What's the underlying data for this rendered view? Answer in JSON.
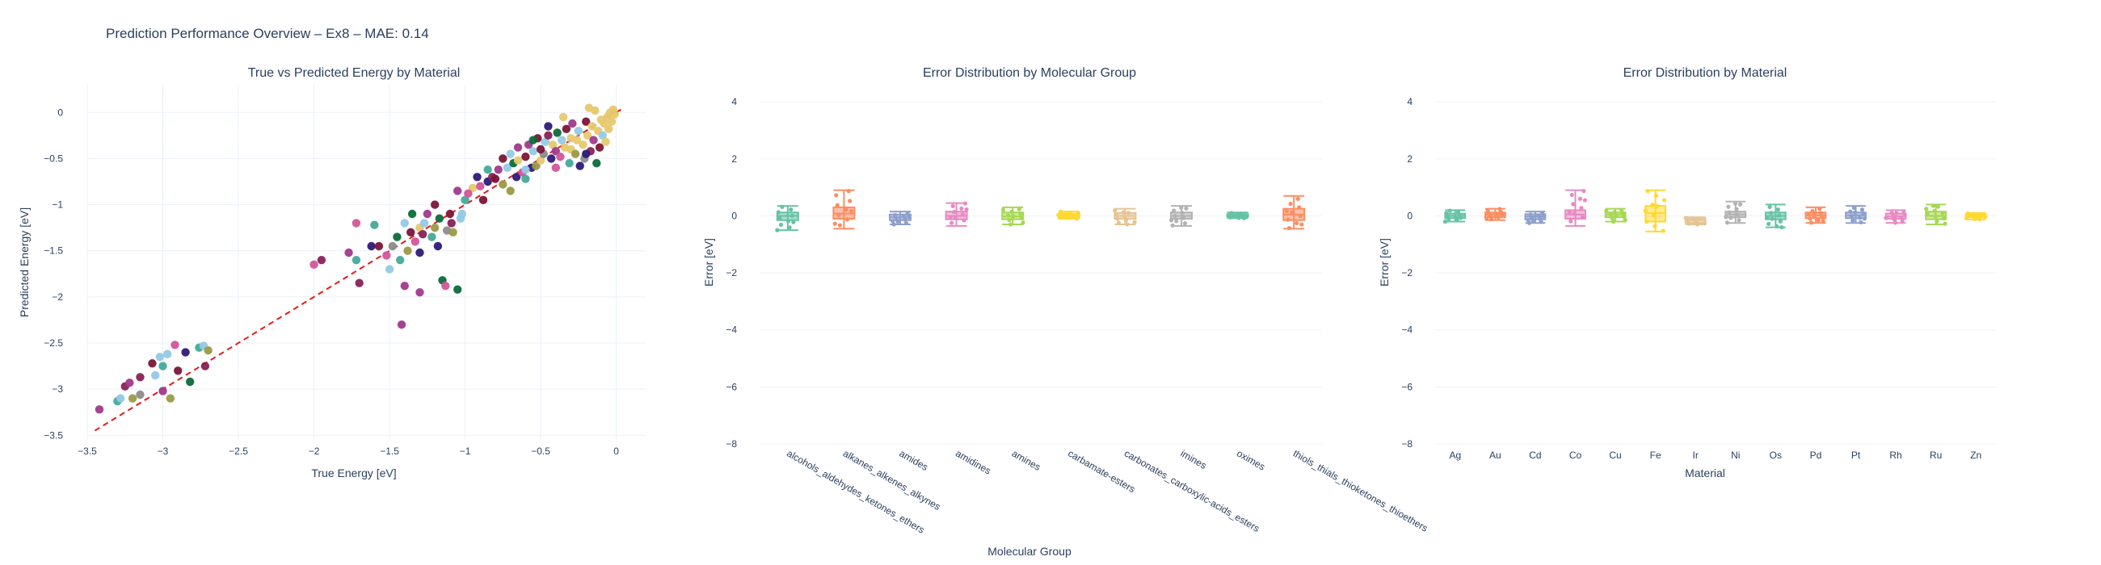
{
  "title": "Prediction Performance Overview – Ex8 – MAE: 0.14",
  "chart_data": [
    {
      "type": "scatter",
      "title": "True vs Predicted Energy by Material",
      "xlabel": "True Energy [eV]",
      "ylabel": "Predicted Energy [eV]",
      "xlim": [
        -3.5,
        0.2
      ],
      "ylim": [
        -3.55,
        0.3
      ],
      "xticks": [
        -3.5,
        -3,
        -2.5,
        -2,
        -1.5,
        -1,
        -0.5,
        0
      ],
      "yticks": [
        -3.5,
        -3,
        -2.5,
        -2,
        -1.5,
        -1,
        -0.5,
        0
      ],
      "xtick_labels": [
        "−3.5",
        "−3",
        "−2.5",
        "−2",
        "−1.5",
        "−1",
        "−0.5",
        "0"
      ],
      "ytick_labels": [
        "−3.5",
        "−3",
        "−2.5",
        "−2",
        "−1.5",
        "−1",
        "−0.5",
        "0"
      ],
      "grid": true,
      "reference_line": {
        "x": [
          -3.45,
          0.05
        ],
        "y": [
          -3.45,
          0.05
        ],
        "color": "#e41a1c",
        "style": "dashed"
      },
      "palette": [
        "#e6c86e",
        "#7b1538",
        "#2e1a78",
        "#a03a8c",
        "#93c9e6",
        "#0b6b3a",
        "#9a9a46",
        "#d3559a",
        "#8c8c8c",
        "#44aa99",
        "#882255"
      ],
      "points": [
        [
          -3.42,
          -3.22,
          3
        ],
        [
          -3.3,
          -3.13,
          9
        ],
        [
          -3.28,
          -3.1,
          4
        ],
        [
          -3.25,
          -2.97,
          10
        ],
        [
          -3.22,
          -2.93,
          3
        ],
        [
          -3.2,
          -3.1,
          6
        ],
        [
          -3.15,
          -3.06,
          8
        ],
        [
          -3.15,
          -2.87,
          10
        ],
        [
          -3.07,
          -2.72,
          1
        ],
        [
          -3.05,
          -2.85,
          4
        ],
        [
          -3.02,
          -2.65,
          4
        ],
        [
          -3.0,
          -3.02,
          3
        ],
        [
          -3.0,
          -2.75,
          9
        ],
        [
          -2.97,
          -2.62,
          4
        ],
        [
          -2.95,
          -3.1,
          6
        ],
        [
          -2.92,
          -2.52,
          7
        ],
        [
          -2.9,
          -2.8,
          1
        ],
        [
          -2.85,
          -2.6,
          2
        ],
        [
          -2.82,
          -2.92,
          5
        ],
        [
          -2.76,
          -2.55,
          9
        ],
        [
          -2.73,
          -2.53,
          4
        ],
        [
          -2.72,
          -2.75,
          10
        ],
        [
          -2.7,
          -2.58,
          6
        ],
        [
          -2.0,
          -1.65,
          7
        ],
        [
          -1.95,
          -1.6,
          10
        ],
        [
          -1.77,
          -1.52,
          3
        ],
        [
          -1.72,
          -1.2,
          7
        ],
        [
          -1.72,
          -1.6,
          9
        ],
        [
          -1.7,
          -1.85,
          10
        ],
        [
          -1.62,
          -1.45,
          2
        ],
        [
          -1.6,
          -1.22,
          9
        ],
        [
          -1.57,
          -1.45,
          1
        ],
        [
          -1.52,
          -1.55,
          7
        ],
        [
          -1.5,
          -1.7,
          4
        ],
        [
          -1.48,
          -1.45,
          8
        ],
        [
          -1.45,
          -1.35,
          5
        ],
        [
          -1.43,
          -1.6,
          9
        ],
        [
          -1.4,
          -1.88,
          3
        ],
        [
          -1.4,
          -1.2,
          4
        ],
        [
          -1.38,
          -1.5,
          6
        ],
        [
          -1.36,
          -1.3,
          1
        ],
        [
          -1.35,
          -1.1,
          5
        ],
        [
          -1.33,
          -1.4,
          7
        ],
        [
          -1.3,
          -1.25,
          0
        ],
        [
          -1.3,
          -1.52,
          2
        ],
        [
          -1.28,
          -1.32,
          10
        ],
        [
          -1.27,
          -1.2,
          4
        ],
        [
          -1.25,
          -1.1,
          3
        ],
        [
          -1.22,
          -1.35,
          9
        ],
        [
          -1.2,
          -1.25,
          6
        ],
        [
          -1.2,
          -1.0,
          1
        ],
        [
          -1.18,
          -1.45,
          2
        ],
        [
          -1.17,
          -1.15,
          5
        ],
        [
          -1.15,
          -1.82,
          5
        ],
        [
          -1.13,
          -1.88,
          7
        ],
        [
          -1.12,
          -1.28,
          8
        ],
        [
          -1.1,
          -1.1,
          1
        ],
        [
          -1.08,
          -1.3,
          6
        ],
        [
          -1.05,
          -1.92,
          5
        ],
        [
          -1.05,
          -0.85,
          3
        ],
        [
          -1.02,
          -1.1,
          4
        ],
        [
          -1.0,
          -0.95,
          9
        ],
        [
          -1.42,
          -2.3,
          3
        ],
        [
          -1.3,
          -1.95,
          3
        ],
        [
          -0.95,
          -0.82,
          0
        ],
        [
          -0.9,
          -0.8,
          7
        ],
        [
          -0.88,
          -0.95,
          1
        ],
        [
          -0.85,
          -0.75,
          2
        ],
        [
          -0.82,
          -0.7,
          10
        ],
        [
          -0.8,
          -0.72,
          1
        ],
        [
          -0.78,
          -0.62,
          3
        ],
        [
          -0.75,
          -0.78,
          6
        ],
        [
          -0.72,
          -0.6,
          4
        ],
        [
          -0.7,
          -0.45,
          4
        ],
        [
          -0.68,
          -0.55,
          5
        ],
        [
          -0.66,
          -0.7,
          2
        ],
        [
          -0.65,
          -0.52,
          0
        ],
        [
          -0.62,
          -0.65,
          7
        ],
        [
          -0.6,
          -0.48,
          1
        ],
        [
          -0.6,
          -0.72,
          9
        ],
        [
          -0.58,
          -0.35,
          3
        ],
        [
          -0.56,
          -0.6,
          2
        ],
        [
          -0.55,
          -0.42,
          4
        ],
        [
          -0.53,
          -0.58,
          6
        ],
        [
          -0.52,
          -0.28,
          1
        ],
        [
          -0.5,
          -0.52,
          0
        ],
        [
          -0.48,
          -0.45,
          8
        ],
        [
          -0.47,
          -0.32,
          4
        ],
        [
          -0.45,
          -0.25,
          10
        ],
        [
          -0.43,
          -0.5,
          2
        ],
        [
          -0.42,
          -0.35,
          0
        ],
        [
          -0.4,
          -0.42,
          3
        ],
        [
          -0.39,
          -0.22,
          5
        ],
        [
          -0.37,
          -0.48,
          7
        ],
        [
          -0.36,
          -0.3,
          4
        ],
        [
          -0.34,
          -0.38,
          0
        ],
        [
          -0.33,
          -0.18,
          1
        ],
        [
          -0.31,
          -0.55,
          9
        ],
        [
          -0.3,
          -0.4,
          0
        ],
        [
          -0.29,
          -0.12,
          3
        ],
        [
          -0.27,
          -0.45,
          6
        ],
        [
          -0.26,
          -0.3,
          0
        ],
        [
          -0.25,
          -0.2,
          4
        ],
        [
          -0.24,
          -0.58,
          2
        ],
        [
          -0.22,
          -0.35,
          0
        ],
        [
          -0.21,
          -0.5,
          8
        ],
        [
          -0.2,
          -0.1,
          1
        ],
        [
          -0.19,
          -0.25,
          0
        ],
        [
          -0.18,
          0.05,
          0
        ],
        [
          -0.17,
          -0.42,
          10
        ],
        [
          -0.16,
          -0.15,
          0
        ],
        [
          -0.15,
          -0.3,
          3
        ],
        [
          -0.14,
          0.02,
          0
        ],
        [
          -0.13,
          -0.55,
          5
        ],
        [
          -0.12,
          -0.2,
          0
        ],
        [
          -0.11,
          -0.38,
          1
        ],
        [
          -0.1,
          -0.08,
          0
        ],
        [
          -0.09,
          -0.25,
          4
        ],
        [
          -0.08,
          -0.12,
          0
        ],
        [
          -0.07,
          -0.32,
          0
        ],
        [
          -0.06,
          -0.05,
          0
        ],
        [
          -0.05,
          -0.18,
          0
        ],
        [
          -0.04,
          0.0,
          0
        ],
        [
          -0.03,
          -0.1,
          0
        ],
        [
          -0.02,
          0.03,
          0
        ],
        [
          -0.01,
          -0.02,
          0
        ],
        [
          -0.35,
          -0.05,
          0
        ],
        [
          -0.45,
          -0.15,
          2
        ],
        [
          -0.55,
          -0.3,
          5
        ],
        [
          -0.65,
          -0.38,
          3
        ],
        [
          -0.75,
          -0.5,
          1
        ],
        [
          -0.85,
          -0.62,
          9
        ],
        [
          -0.92,
          -0.7,
          2
        ],
        [
          -0.98,
          -0.88,
          7
        ],
        [
          -1.03,
          -1.15,
          4
        ],
        [
          -1.09,
          -1.2,
          10
        ],
        [
          -0.7,
          -0.85,
          6
        ],
        [
          -0.6,
          -0.62,
          4
        ],
        [
          -0.5,
          -0.4,
          1
        ],
        [
          -0.4,
          -0.6,
          7
        ],
        [
          -0.3,
          -0.28,
          0
        ],
        [
          -0.2,
          -0.45,
          2
        ]
      ]
    },
    {
      "type": "box",
      "title": "Error Distribution by Molecular Group",
      "xlabel": "Molecular Group",
      "ylabel": "Error [eV]",
      "ylim": [
        -8,
        4.6
      ],
      "yticks": [
        -8,
        -6,
        -4,
        -2,
        0,
        2,
        4
      ],
      "ytick_labels": [
        "−8",
        "−6",
        "−4",
        "−2",
        "0",
        "2",
        "4"
      ],
      "grid": true,
      "categories": [
        "alcohols_aldehydes_ketones_ethers",
        "alkanes_alkenes_alkynes",
        "amides",
        "amidines",
        "amines",
        "carbamate-esters",
        "carbonates_carboxylic-acids_esters",
        "imines",
        "oximes",
        "thiols_thials_thioketones_thioethers"
      ],
      "colors": [
        "#66c2a5",
        "#fc8d62",
        "#8da0cb",
        "#e78ac3",
        "#a6d854",
        "#ffd92f",
        "#e5c494",
        "#b3b3b3",
        "#66c2a5",
        "#fc8d62"
      ],
      "box_stats": [
        [
          -0.5,
          -0.15,
          0.0,
          0.12,
          0.35
        ],
        [
          -0.45,
          -0.1,
          0.08,
          0.3,
          0.9
        ],
        [
          -0.3,
          -0.15,
          -0.05,
          0.05,
          0.15
        ],
        [
          -0.35,
          -0.12,
          0.0,
          0.15,
          0.45
        ],
        [
          -0.3,
          -0.12,
          -0.02,
          0.12,
          0.3
        ],
        [
          -0.1,
          -0.05,
          0.02,
          0.08,
          0.15
        ],
        [
          -0.3,
          -0.1,
          0.0,
          0.1,
          0.25
        ],
        [
          -0.35,
          -0.1,
          0.0,
          0.12,
          0.35
        ],
        [
          -0.08,
          -0.03,
          0.02,
          0.06,
          0.12
        ],
        [
          -0.45,
          -0.15,
          0.05,
          0.25,
          0.7
        ]
      ]
    },
    {
      "type": "box",
      "title": "Error Distribution by Material",
      "xlabel": "Material",
      "ylabel": "Error [eV]",
      "ylim": [
        -8,
        4.6
      ],
      "yticks": [
        -8,
        -6,
        -4,
        -2,
        0,
        2,
        4
      ],
      "ytick_labels": [
        "−8",
        "−6",
        "−4",
        "−2",
        "0",
        "2",
        "4"
      ],
      "grid": true,
      "categories": [
        "Ag",
        "Au",
        "Cd",
        "Co",
        "Cu",
        "Fe",
        "Ir",
        "Ni",
        "Os",
        "Pd",
        "Pt",
        "Rh",
        "Ru",
        "Zn"
      ],
      "colors": [
        "#66c2a5",
        "#fc8d62",
        "#8da0cb",
        "#e78ac3",
        "#a6d854",
        "#ffd92f",
        "#e5c494",
        "#b3b3b3",
        "#66c2a5",
        "#fc8d62",
        "#8da0cb",
        "#e78ac3",
        "#a6d854",
        "#ffd92f"
      ],
      "box_stats": [
        [
          -0.2,
          -0.08,
          0.0,
          0.08,
          0.2
        ],
        [
          -0.15,
          -0.05,
          0.05,
          0.12,
          0.25
        ],
        [
          -0.25,
          -0.12,
          -0.02,
          0.06,
          0.15
        ],
        [
          -0.35,
          -0.1,
          0.05,
          0.2,
          0.9
        ],
        [
          -0.2,
          -0.05,
          0.05,
          0.12,
          0.25
        ],
        [
          -0.55,
          -0.2,
          0.1,
          0.35,
          0.9
        ],
        [
          -0.3,
          -0.25,
          -0.15,
          -0.08,
          -0.05
        ],
        [
          -0.25,
          -0.05,
          0.05,
          0.15,
          0.5
        ],
        [
          -0.4,
          -0.12,
          0.0,
          0.12,
          0.4
        ],
        [
          -0.25,
          -0.08,
          0.02,
          0.12,
          0.3
        ],
        [
          -0.25,
          -0.08,
          0.02,
          0.12,
          0.35
        ],
        [
          -0.25,
          -0.1,
          -0.02,
          0.08,
          0.2
        ],
        [
          -0.3,
          -0.12,
          0.0,
          0.15,
          0.4
        ],
        [
          -0.12,
          -0.05,
          0.0,
          0.05,
          0.1
        ]
      ]
    }
  ]
}
